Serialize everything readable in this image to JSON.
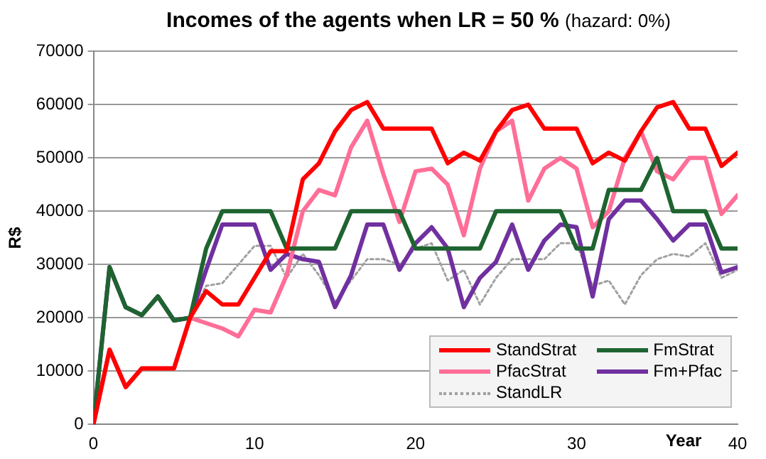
{
  "chart_data": {
    "type": "line",
    "title": "Incomes of the agents when LR = 50 %",
    "subtitle": "(hazard: 0%)",
    "xlabel": "Year",
    "ylabel": "R$",
    "x": [
      0,
      1,
      2,
      3,
      4,
      5,
      6,
      7,
      8,
      9,
      10,
      11,
      12,
      13,
      14,
      15,
      16,
      17,
      18,
      19,
      20,
      21,
      22,
      23,
      24,
      25,
      26,
      27,
      28,
      29,
      30,
      31,
      32,
      33,
      34,
      35,
      36,
      37,
      38,
      39,
      40
    ],
    "xlim": [
      0,
      40
    ],
    "xticks": [
      0,
      10,
      20,
      30,
      40
    ],
    "ylim": [
      0,
      70000
    ],
    "yticks": [
      0,
      10000,
      20000,
      30000,
      40000,
      50000,
      60000,
      70000
    ],
    "grid": "y",
    "legend": "bottom right",
    "marker": "none",
    "series": [
      {
        "name": "StandStrat",
        "color": "#ff0000",
        "line_style": "solid",
        "values": [
          0,
          14000,
          7000,
          10500,
          10500,
          10500,
          20000,
          25000,
          22500,
          22500,
          27500,
          32500,
          32500,
          46000,
          49000,
          55000,
          59000,
          60500,
          55500,
          55500,
          55500,
          55500,
          49000,
          51000,
          49500,
          55000,
          59000,
          60000,
          55500,
          55500,
          55500,
          49000,
          51000,
          49500,
          55000,
          59500,
          60500,
          55500,
          55500,
          48500,
          51000
        ]
      },
      {
        "name": "FmStrat",
        "color": "#1e6430",
        "line_style": "solid",
        "values": [
          0,
          29500,
          22000,
          20500,
          24000,
          19500,
          20000,
          33000,
          40000,
          40000,
          40000,
          40000,
          33000,
          33000,
          33000,
          33000,
          40000,
          40000,
          40000,
          40000,
          33000,
          33000,
          33000,
          33000,
          33000,
          40000,
          40000,
          40000,
          40000,
          40000,
          33000,
          33000,
          44000,
          44000,
          44000,
          50000,
          40000,
          40000,
          40000,
          33000,
          33000
        ]
      },
      {
        "name": "PfacStrat",
        "color": "#ff6e96",
        "line_style": "solid",
        "values": [
          0,
          14000,
          7000,
          10500,
          10500,
          10500,
          20000,
          19000,
          18000,
          16500,
          21500,
          21000,
          28000,
          40000,
          44000,
          43000,
          52000,
          57000,
          47000,
          38000,
          47500,
          48000,
          45000,
          35500,
          48000,
          55000,
          57000,
          42000,
          48000,
          50000,
          48000,
          37000,
          40000,
          50000,
          55000,
          47500,
          46000,
          50000,
          50000,
          39500,
          43000
        ]
      },
      {
        "name": "Fm+Pfac",
        "color": "#7030a0",
        "line_style": "solid",
        "values": [
          0,
          29500,
          22000,
          20500,
          24000,
          19500,
          20000,
          29000,
          37500,
          37500,
          37500,
          29000,
          32000,
          31000,
          30500,
          22000,
          28000,
          37500,
          37500,
          29000,
          34000,
          37000,
          33000,
          22000,
          27500,
          30500,
          37500,
          29000,
          34500,
          37500,
          37000,
          24000,
          38500,
          42000,
          42000,
          38500,
          34500,
          37500,
          37500,
          28500,
          29500
        ]
      },
      {
        "name": "StandLR",
        "color": "#a0a0a0",
        "line_style": "dotted",
        "values": [
          0,
          29500,
          22000,
          20500,
          24000,
          19500,
          20000,
          26000,
          26500,
          30000,
          33500,
          33500,
          27500,
          32000,
          28000,
          23000,
          27000,
          31000,
          31000,
          30000,
          33000,
          34000,
          27000,
          29000,
          22500,
          27500,
          31000,
          31000,
          31000,
          34000,
          34000,
          26000,
          27000,
          22500,
          28000,
          31000,
          32000,
          31500,
          34000,
          27500,
          29000
        ]
      }
    ]
  }
}
